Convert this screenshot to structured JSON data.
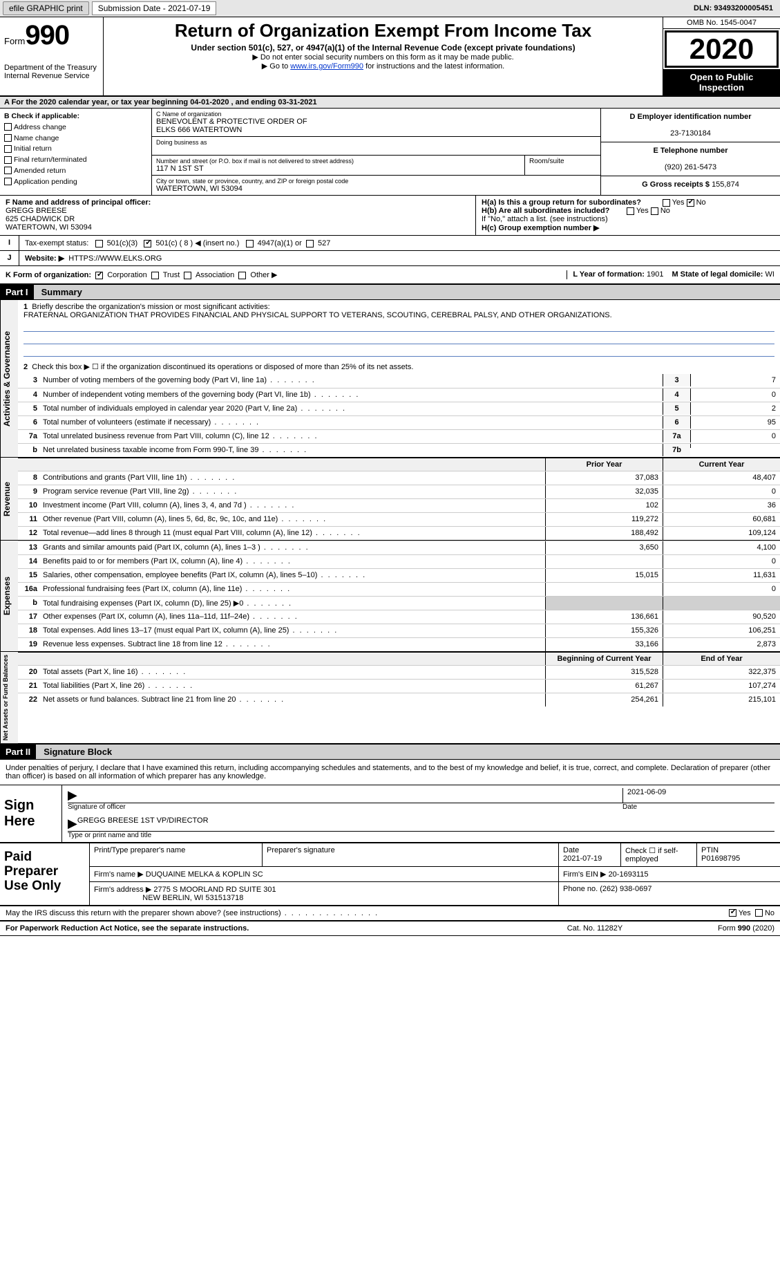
{
  "topbar": {
    "efile": "efile GRAPHIC print",
    "subdate_label": "Submission Date - 2021-07-19",
    "dln": "DLN: 93493200005451"
  },
  "header": {
    "form_prefix": "Form",
    "form_no": "990",
    "dept": "Department of the Treasury",
    "irs": "Internal Revenue Service",
    "title": "Return of Organization Exempt From Income Tax",
    "sub": "Under section 501(c), 527, or 4947(a)(1) of the Internal Revenue Code (except private foundations)",
    "line1": "▶ Do not enter social security numbers on this form as it may be made public.",
    "line2_pre": "▶ Go to ",
    "line2_link": "www.irs.gov/Form990",
    "line2_post": " for instructions and the latest information.",
    "omb": "OMB No. 1545-0047",
    "year": "2020",
    "otp1": "Open to Public",
    "otp2": "Inspection"
  },
  "lineA": "A For the 2020 calendar year, or tax year beginning 04-01-2020    , and ending 03-31-2021",
  "boxB": {
    "title": "B Check if applicable:",
    "opts": [
      "Address change",
      "Name change",
      "Initial return",
      "Final return/terminated",
      "Amended return",
      "Application pending"
    ]
  },
  "boxC": {
    "label": "C Name of organization",
    "name1": "BENEVOLENT & PROTECTIVE ORDER OF",
    "name2": "ELKS 666 WATERTOWN",
    "dba_label": "Doing business as",
    "addr_label": "Number and street (or P.O. box if mail is not delivered to street address)",
    "suite_label": "Room/suite",
    "addr": "117 N 1ST ST",
    "city_label": "City or town, state or province, country, and ZIP or foreign postal code",
    "city": "WATERTOWN, WI  53094"
  },
  "boxD": {
    "label": "D Employer identification number",
    "val": "23-7130184"
  },
  "boxE": {
    "label": "E Telephone number",
    "val": "(920) 261-5473"
  },
  "boxG": {
    "label": "G Gross receipts $",
    "val": "155,874"
  },
  "boxF": {
    "label": "F  Name and address of principal officer:",
    "name": "GREGG BREESE",
    "addr1": "625 CHADWICK DR",
    "addr2": "WATERTOWN, WI  53094"
  },
  "boxH": {
    "ha": "H(a)  Is this a group return for subordinates?",
    "hb": "H(b)  Are all subordinates included?",
    "hb2": "If \"No,\" attach a list. (see instructions)",
    "hc": "H(c)  Group exemption number ▶",
    "yes": "Yes",
    "no": "No"
  },
  "boxI": {
    "label": "Tax-exempt status:",
    "o1": "501(c)(3)",
    "o2": "501(c) ( 8 ) ◀ (insert no.)",
    "o3": "4947(a)(1) or",
    "o4": "527"
  },
  "boxJ": {
    "label": "Website: ▶",
    "val": "HTTPS://WWW.ELKS.ORG"
  },
  "boxK": {
    "label": "K Form of organization:",
    "o1": "Corporation",
    "o2": "Trust",
    "o3": "Association",
    "o4": "Other ▶"
  },
  "boxL": {
    "label": "L Year of formation:",
    "val": "1901"
  },
  "boxM": {
    "label": "M State of legal domicile:",
    "val": "WI"
  },
  "partI": {
    "hdr": "Part I",
    "title": "Summary"
  },
  "summary": {
    "l1_label": "Briefly describe the organization's mission or most significant activities:",
    "l1_text": "FRATERNAL ORGANIZATION THAT PROVIDES FINANCIAL AND PHYSICAL SUPPORT TO VETERANS, SCOUTING, CEREBRAL PALSY, AND OTHER ORGANIZATIONS.",
    "l2": "Check this box ▶ ☐  if the organization discontinued its operations or disposed of more than 25% of its net assets.",
    "rows_gov": [
      {
        "n": "3",
        "d": "Number of voting members of the governing body (Part VI, line 1a)",
        "box": "3",
        "v": "7"
      },
      {
        "n": "4",
        "d": "Number of independent voting members of the governing body (Part VI, line 1b)",
        "box": "4",
        "v": "0"
      },
      {
        "n": "5",
        "d": "Total number of individuals employed in calendar year 2020 (Part V, line 2a)",
        "box": "5",
        "v": "2"
      },
      {
        "n": "6",
        "d": "Total number of volunteers (estimate if necessary)",
        "box": "6",
        "v": "95"
      },
      {
        "n": "7a",
        "d": "Total unrelated business revenue from Part VIII, column (C), line 12",
        "box": "7a",
        "v": "0"
      },
      {
        "n": "b",
        "d": "Net unrelated business taxable income from Form 990-T, line 39",
        "box": "7b",
        "v": ""
      }
    ],
    "col_py": "Prior Year",
    "col_cy": "Current Year",
    "rows_rev": [
      {
        "n": "8",
        "d": "Contributions and grants (Part VIII, line 1h)",
        "p": "37,083",
        "c": "48,407"
      },
      {
        "n": "9",
        "d": "Program service revenue (Part VIII, line 2g)",
        "p": "32,035",
        "c": "0"
      },
      {
        "n": "10",
        "d": "Investment income (Part VIII, column (A), lines 3, 4, and 7d )",
        "p": "102",
        "c": "36"
      },
      {
        "n": "11",
        "d": "Other revenue (Part VIII, column (A), lines 5, 6d, 8c, 9c, 10c, and 11e)",
        "p": "119,272",
        "c": "60,681"
      },
      {
        "n": "12",
        "d": "Total revenue—add lines 8 through 11 (must equal Part VIII, column (A), line 12)",
        "p": "188,492",
        "c": "109,124"
      }
    ],
    "rows_exp": [
      {
        "n": "13",
        "d": "Grants and similar amounts paid (Part IX, column (A), lines 1–3 )",
        "p": "3,650",
        "c": "4,100"
      },
      {
        "n": "14",
        "d": "Benefits paid to or for members (Part IX, column (A), line 4)",
        "p": "",
        "c": "0"
      },
      {
        "n": "15",
        "d": "Salaries, other compensation, employee benefits (Part IX, column (A), lines 5–10)",
        "p": "15,015",
        "c": "11,631"
      },
      {
        "n": "16a",
        "d": "Professional fundraising fees (Part IX, column (A), line 11e)",
        "p": "",
        "c": "0"
      },
      {
        "n": "b",
        "d": "Total fundraising expenses (Part IX, column (D), line 25) ▶0",
        "p": "__shade__",
        "c": "__shade__"
      },
      {
        "n": "17",
        "d": "Other expenses (Part IX, column (A), lines 11a–11d, 11f–24e)",
        "p": "136,661",
        "c": "90,520"
      },
      {
        "n": "18",
        "d": "Total expenses. Add lines 13–17 (must equal Part IX, column (A), line 25)",
        "p": "155,326",
        "c": "106,251"
      },
      {
        "n": "19",
        "d": "Revenue less expenses. Subtract line 18 from line 12",
        "p": "33,166",
        "c": "2,873"
      }
    ],
    "col_boy": "Beginning of Current Year",
    "col_eoy": "End of Year",
    "rows_na": [
      {
        "n": "20",
        "d": "Total assets (Part X, line 16)",
        "p": "315,528",
        "c": "322,375"
      },
      {
        "n": "21",
        "d": "Total liabilities (Part X, line 26)",
        "p": "61,267",
        "c": "107,274"
      },
      {
        "n": "22",
        "d": "Net assets or fund balances. Subtract line 21 from line 20",
        "p": "254,261",
        "c": "215,101"
      }
    ]
  },
  "vtabs": {
    "gov": "Activities & Governance",
    "rev": "Revenue",
    "exp": "Expenses",
    "na": "Net Assets or\nFund Balances"
  },
  "partII": {
    "hdr": "Part II",
    "title": "Signature Block"
  },
  "sig": {
    "decl": "Under penalties of perjury, I declare that I have examined this return, including accompanying schedules and statements, and to the best of my knowledge and belief, it is true, correct, and complete. Declaration of preparer (other than officer) is based on all information of which preparer has any knowledge.",
    "sign_here": "Sign Here",
    "sig_officer": "Signature of officer",
    "date_lbl": "Date",
    "sig_date": "2021-06-09",
    "name": "GREGG BREESE  1ST VP/DIRECTOR",
    "name_lbl": "Type or print name and title"
  },
  "prep": {
    "lbl": "Paid Preparer Use Only",
    "h1": "Print/Type preparer's name",
    "h2": "Preparer's signature",
    "h3": "Date",
    "h4": "Check ☐ if self-employed",
    "h5": "PTIN",
    "date": "2021-07-19",
    "ptin": "P01698795",
    "firm_lbl": "Firm's name    ▶",
    "firm": "DUQUAINE MELKA & KOPLIN SC",
    "ein_lbl": "Firm's EIN ▶",
    "ein": "20-1693115",
    "addr_lbl": "Firm's address ▶",
    "addr1": "2775 S MOORLAND RD SUITE 301",
    "addr2": "NEW BERLIN, WI  531513718",
    "phone_lbl": "Phone no.",
    "phone": "(262) 938-0697"
  },
  "discuss": "May the IRS discuss this return with the preparer shown above? (see instructions)",
  "footer": {
    "pra": "For Paperwork Reduction Act Notice, see the separate instructions.",
    "cat": "Cat. No. 11282Y",
    "form": "Form 990 (2020)"
  }
}
